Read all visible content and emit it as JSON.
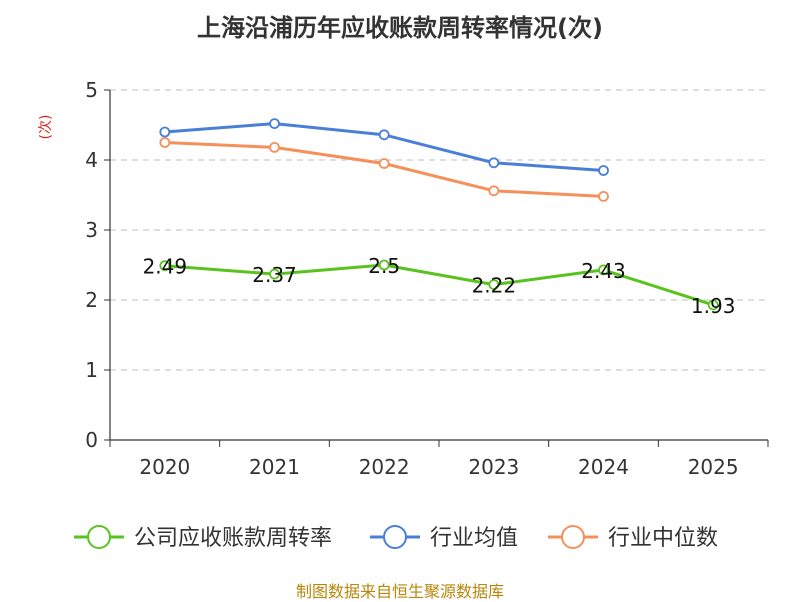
{
  "chart_data": {
    "type": "line",
    "title": "上海沿浦历年应收账款周转率情况(次)",
    "ylabel": "(次)",
    "xlabel": "",
    "categories": [
      "2020",
      "2021",
      "2022",
      "2023",
      "2024",
      "2025"
    ],
    "ylim": [
      0,
      5
    ],
    "yticks": [
      0,
      1,
      2,
      3,
      4,
      5
    ],
    "grid": true,
    "legend_position": "bottom",
    "series": [
      {
        "name": "公司应收账款周转率",
        "color": "#5ac21e",
        "values": [
          2.49,
          2.37,
          2.5,
          2.22,
          2.43,
          1.93
        ],
        "data_labels": [
          "2.49",
          "2.37",
          "2.5",
          "2.22",
          "2.43",
          "1.93"
        ]
      },
      {
        "name": "行业均值",
        "color": "#4a7fd8",
        "values": [
          4.4,
          4.52,
          4.36,
          3.96,
          3.85,
          null
        ]
      },
      {
        "name": "行业中位数",
        "color": "#f5905a",
        "values": [
          4.25,
          4.18,
          3.95,
          3.56,
          3.48,
          null
        ]
      }
    ]
  },
  "source_text": "制图数据来自恒生聚源数据库"
}
